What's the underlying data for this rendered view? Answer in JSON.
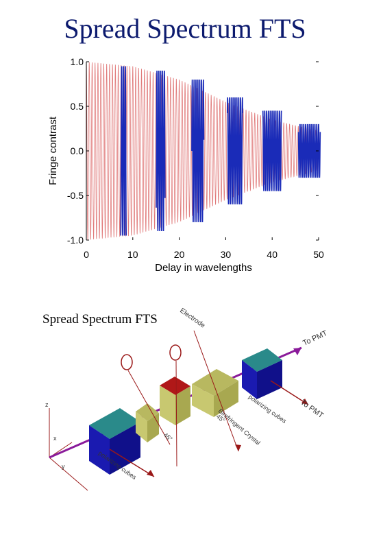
{
  "slide": {
    "title": "Spread Spectrum FTS",
    "caption": "Spread Spectrum FTS"
  },
  "chart_data": {
    "type": "line",
    "title": "",
    "xlabel": "Delay in wavelengths",
    "ylabel": "Fringe contrast",
    "xlim": [
      0,
      50
    ],
    "ylim": [
      -1.0,
      1.0
    ],
    "x_ticks": [
      0,
      10,
      20,
      30,
      40,
      50
    ],
    "y_ticks": [
      -1.0,
      -0.5,
      0.0,
      0.5,
      1.0
    ],
    "x_tick_labels": [
      "0",
      "10",
      "20",
      "30",
      "40",
      "50"
    ],
    "y_tick_labels": [
      "-1.0",
      "-0.5",
      "0.0",
      "0.5",
      "1.0"
    ],
    "grid": false,
    "series": [
      {
        "color": "#e07a7a",
        "description_envelope": [
          [
            0,
            1.0
          ],
          [
            10,
            0.95
          ],
          [
            20,
            0.8
          ],
          [
            30,
            0.55
          ],
          [
            40,
            0.35
          ],
          [
            50,
            0.22
          ]
        ],
        "fringe_period": 1.0
      },
      {
        "color": "#1a2bb8",
        "bursts": [
          {
            "x": 8.0,
            "amplitude": 0.95
          },
          {
            "x": 16.0,
            "amplitude": 0.9
          },
          {
            "x": 24.0,
            "amplitude": 0.8
          },
          {
            "x": 32.0,
            "amplitude": 0.6
          },
          {
            "x": 40.0,
            "amplitude": 0.45
          },
          {
            "x": 48.0,
            "amplitude": 0.3
          }
        ]
      }
    ]
  },
  "diagram": {
    "labels": {
      "electrode": "Electrode",
      "to_pmt_top": "To PMT",
      "to_pmt_side": "To PMT",
      "polarizing_cubes_right": "polarizing cubes",
      "polarizing_cubes_left": "polarizing cubes",
      "birefringent_crystal": "Birefringent Crystal",
      "angle_45_right": "45°",
      "angle_45_mid": "45°",
      "axis_x": "x",
      "axis_y": "y",
      "axis_z": "z"
    },
    "colors": {
      "beam": "#8a1a9a",
      "cube_front": "#1a1ab0",
      "cube_top": "#2a8a8a",
      "crystal": "#c8c870",
      "electrode_block": "#b01818",
      "arrow": "#9a1818"
    }
  }
}
